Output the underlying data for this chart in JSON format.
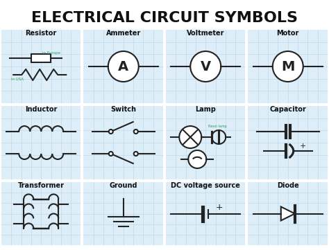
{
  "title": "ELECTRICAL CIRCUIT SYMBOLS",
  "title_fontsize": 16,
  "title_color": "#111111",
  "background_color": "#ffffff",
  "grid_color": "#b8d4e8",
  "cell_bg": "#ddeef8",
  "symbol_color": "#222222",
  "label_color": "#111111",
  "green_color": "#2a9d5c",
  "labels": [
    [
      "Resistor",
      "Ammeter",
      "Voltmeter",
      "Motor"
    ],
    [
      "Inductor",
      "Switch",
      "Lamp",
      "Capacitor"
    ],
    [
      "Transformer",
      "Ground",
      "DC voltage source",
      "Diode"
    ]
  ],
  "row_tops": [
    320,
    210,
    100
  ],
  "row_bottoms": [
    210,
    100,
    5
  ]
}
